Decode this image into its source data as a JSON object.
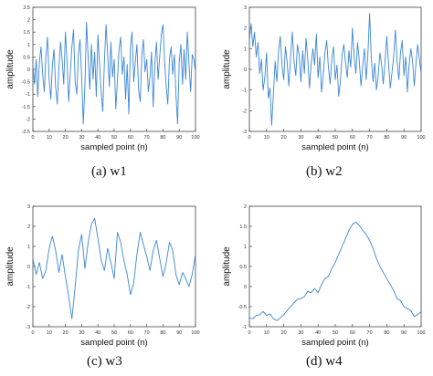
{
  "chart_data": [
    {
      "type": "line",
      "caption": "(a) w1",
      "xlabel": "sampled point (n)",
      "ylabel": "amplitude",
      "xlim": [
        0,
        100
      ],
      "ylim": [
        -2.5,
        2.5
      ],
      "xticks": [
        "0",
        "10",
        "20",
        "30",
        "40",
        "50",
        "60",
        "70",
        "80",
        "90",
        "100"
      ],
      "yticks": [
        "-2.5",
        "-2",
        "-1.5",
        "-1",
        "-0.5",
        "0",
        "0.5",
        "1",
        "1.5",
        "2",
        "2.5"
      ],
      "color": "#3a86d6",
      "series": [
        {
          "x": [
            0,
            1,
            2,
            3,
            4,
            5,
            6,
            7,
            8,
            9,
            10,
            11,
            12,
            13,
            14,
            15,
            16,
            17,
            18,
            19,
            20,
            21,
            22,
            23,
            24,
            25,
            26,
            27,
            28,
            29,
            30,
            31,
            32,
            33,
            34,
            35,
            36,
            37,
            38,
            39,
            40,
            41,
            42,
            43,
            44,
            45,
            46,
            47,
            48,
            49,
            50,
            51,
            52,
            53,
            54,
            55,
            56,
            57,
            58,
            59,
            60,
            61,
            62,
            63,
            64,
            65,
            66,
            67,
            68,
            69,
            70,
            71,
            72,
            73,
            74,
            75,
            76,
            77,
            78,
            79,
            80,
            81,
            82,
            83,
            84,
            85,
            86,
            87,
            88,
            89,
            90,
            91,
            92,
            93,
            94,
            95,
            96,
            97,
            98,
            99,
            100
          ],
          "values": [
            0.2,
            -0.6,
            0.4,
            -1.1,
            0.3,
            0.9,
            -0.2,
            -0.9,
            0.5,
            1.3,
            -0.4,
            -1.2,
            0.2,
            0.8,
            -0.7,
            -1.4,
            0.1,
            1.1,
            0.4,
            -0.6,
            1.5,
            0.3,
            -1.3,
            -0.2,
            0.9,
            1.6,
            -0.5,
            -1.0,
            0.6,
            1.2,
            -0.3,
            -2.2,
            -0.6,
            1.9,
            0.5,
            -0.8,
            1.0,
            -0.4,
            0.7,
            -1.1,
            1.4,
            0.2,
            -0.9,
            -1.7,
            0.3,
            1.8,
            0.6,
            -0.7,
            1.1,
            -0.3,
            0.4,
            -1.6,
            -0.4,
            0.8,
            1.3,
            -0.2,
            0.5,
            -1.2,
            0.2,
            -1.8,
            0.9,
            1.5,
            -0.5,
            0.3,
            1.0,
            -0.8,
            -1.3,
            0.6,
            1.2,
            -0.1,
            0.4,
            -0.9,
            -0.3,
            0.7,
            -1.5,
            0.2,
            1.1,
            -0.4,
            0.5,
            1.4,
            1.8,
            0.3,
            -0.7,
            -1.4,
            0.4,
            0.9,
            -0.2,
            0.6,
            -1.0,
            -2.2,
            0.3,
            1.0,
            -0.6,
            0.8,
            -0.4,
            1.5,
            0.2,
            -0.9,
            0.6,
            0.4,
            -0.1
          ]
        }
      ]
    },
    {
      "type": "line",
      "caption": "(b) w2",
      "xlabel": "sampled point (n)",
      "ylabel": "amplitude",
      "xlim": [
        0,
        100
      ],
      "ylim": [
        -3,
        3
      ],
      "xticks": [
        "0",
        "10",
        "20",
        "30",
        "40",
        "50",
        "60",
        "70",
        "80",
        "90",
        "100"
      ],
      "yticks": [
        "-3",
        "-2",
        "-1",
        "0",
        "1",
        "2",
        "3"
      ],
      "color": "#3a86d6",
      "series": [
        {
          "x": [
            0,
            1,
            2,
            3,
            4,
            5,
            6,
            7,
            8,
            9,
            10,
            11,
            12,
            13,
            14,
            15,
            16,
            17,
            18,
            19,
            20,
            21,
            22,
            23,
            24,
            25,
            26,
            27,
            28,
            29,
            30,
            31,
            32,
            33,
            34,
            35,
            36,
            37,
            38,
            39,
            40,
            41,
            42,
            43,
            44,
            45,
            46,
            47,
            48,
            49,
            50,
            51,
            52,
            53,
            54,
            55,
            56,
            57,
            58,
            59,
            60,
            61,
            62,
            63,
            64,
            65,
            66,
            67,
            68,
            69,
            70,
            71,
            72,
            73,
            74,
            75,
            76,
            77,
            78,
            79,
            80,
            81,
            82,
            83,
            84,
            85,
            86,
            87,
            88,
            89,
            90,
            91,
            92,
            93,
            94,
            95,
            96,
            97,
            98,
            99,
            100
          ],
          "values": [
            1.4,
            2.2,
            1.1,
            1.8,
            0.6,
            1.3,
            -0.2,
            0.5,
            -1.0,
            -0.4,
            0.8,
            -1.4,
            -0.9,
            -2.7,
            -1.2,
            0.4,
            -0.6,
            0.9,
            1.6,
            0.2,
            -0.5,
            1.1,
            0.3,
            -0.8,
            0.6,
            1.8,
            0.4,
            -0.3,
            1.2,
            0.7,
            -0.6,
            0.9,
            -0.2,
            1.5,
            0.5,
            -0.9,
            0.3,
            1.0,
            0.2,
            1.7,
            -0.4,
            0.6,
            -1.1,
            -0.3,
            0.8,
            1.4,
            0.1,
            -0.7,
            0.5,
            1.1,
            -0.5,
            0.2,
            -1.3,
            -0.6,
            0.7,
            1.2,
            0.3,
            -0.4,
            0.9,
            0.1,
            2.0,
            0.6,
            -0.2,
            1.3,
            0.4,
            -0.8,
            0.2,
            1.0,
            -0.5,
            0.7,
            2.7,
            0.5,
            -0.6,
            0.3,
            -1.0,
            -0.3,
            0.8,
            0.2,
            -0.7,
            0.4,
            1.6,
            0.3,
            -0.9,
            -0.2,
            0.6,
            1.9,
            0.4,
            -0.5,
            0.8,
            1.4,
            -0.3,
            0.6,
            -1.1,
            0.2,
            1.0,
            0.4,
            -0.8,
            0.3,
            1.2,
            0.5,
            -0.2
          ]
        }
      ]
    },
    {
      "type": "line",
      "caption": "(c) w3",
      "xlabel": "sampled point (n)",
      "ylabel": "amplitude",
      "xlim": [
        0,
        100
      ],
      "ylim": [
        -3,
        3
      ],
      "xticks": [
        "0",
        "10",
        "20",
        "30",
        "40",
        "50",
        "60",
        "70",
        "80",
        "90",
        "100"
      ],
      "yticks": [
        "-3",
        "-2",
        "-1",
        "0",
        "1",
        "2",
        "3"
      ],
      "color": "#3a86d6",
      "series": [
        {
          "x": [
            0,
            2,
            4,
            6,
            8,
            10,
            12,
            14,
            16,
            18,
            20,
            22,
            24,
            26,
            28,
            30,
            32,
            34,
            36,
            38,
            40,
            42,
            44,
            46,
            48,
            50,
            52,
            54,
            56,
            58,
            60,
            62,
            64,
            66,
            68,
            70,
            72,
            74,
            76,
            78,
            80,
            82,
            84,
            86,
            88,
            90,
            92,
            94,
            96,
            98,
            100
          ],
          "values": [
            0.4,
            -0.4,
            0.2,
            -0.6,
            -0.2,
            0.9,
            1.5,
            0.8,
            -0.3,
            0.6,
            -0.5,
            -1.5,
            -2.6,
            -1.0,
            0.8,
            1.6,
            -0.1,
            1.2,
            2.1,
            2.4,
            1.4,
            0.3,
            -0.2,
            0.9,
            0.2,
            -0.6,
            1.7,
            1.2,
            0.3,
            -0.4,
            -1.4,
            -0.8,
            0.6,
            1.7,
            1.1,
            0.5,
            -0.2,
            0.8,
            1.3,
            0.4,
            -0.5,
            0.2,
            1.2,
            0.8,
            -0.4,
            -0.9,
            -0.3,
            -0.6,
            -1.0,
            -0.4,
            0.6
          ]
        }
      ]
    },
    {
      "type": "line",
      "caption": "(d) w4",
      "xlabel": "sampled point (n)",
      "ylabel": "amplitude",
      "xlim": [
        0,
        100
      ],
      "ylim": [
        -1,
        2
      ],
      "xticks": [
        "0",
        "10",
        "20",
        "30",
        "40",
        "50",
        "60",
        "70",
        "80",
        "90",
        "100"
      ],
      "yticks": [
        "-1",
        "-0.5",
        "0",
        "0.5",
        "1",
        "1.5",
        "2"
      ],
      "color": "#3a86d6",
      "series": [
        {
          "x": [
            0,
            2,
            4,
            6,
            8,
            10,
            12,
            14,
            16,
            18,
            20,
            22,
            24,
            26,
            28,
            30,
            32,
            34,
            36,
            38,
            40,
            42,
            44,
            46,
            48,
            50,
            52,
            54,
            56,
            58,
            60,
            62,
            64,
            66,
            68,
            70,
            72,
            74,
            76,
            78,
            80,
            82,
            84,
            86,
            88,
            90,
            92,
            94,
            96,
            98,
            100
          ],
          "values": [
            -0.78,
            -0.8,
            -0.72,
            -0.7,
            -0.62,
            -0.72,
            -0.68,
            -0.8,
            -0.85,
            -0.78,
            -0.7,
            -0.6,
            -0.5,
            -0.4,
            -0.32,
            -0.3,
            -0.25,
            -0.12,
            -0.15,
            -0.05,
            -0.15,
            0.05,
            0.2,
            0.25,
            0.45,
            0.6,
            0.8,
            1.0,
            1.2,
            1.4,
            1.55,
            1.6,
            1.52,
            1.4,
            1.3,
            1.15,
            0.95,
            0.7,
            0.5,
            0.35,
            0.2,
            0.05,
            -0.1,
            -0.3,
            -0.35,
            -0.5,
            -0.55,
            -0.6,
            -0.75,
            -0.7,
            -0.62
          ]
        }
      ]
    }
  ]
}
